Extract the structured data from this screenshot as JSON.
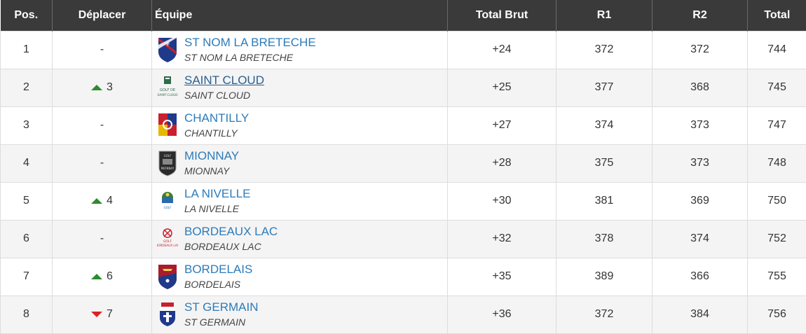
{
  "table": {
    "headers": {
      "pos": "Pos.",
      "move": "Déplacer",
      "team": "Équipe",
      "total_brut": "Total Brut",
      "r1": "R1",
      "r2": "R2",
      "total": "Total"
    },
    "rows": [
      {
        "pos": "1",
        "move_dir": "none",
        "move": "-",
        "team": "ST NOM LA BRETECHE",
        "team_sub": "ST NOM LA BRETECHE",
        "logo": "st-nom-crest-icon",
        "total_brut": "+24",
        "r1": "372",
        "r2": "372",
        "total": "744"
      },
      {
        "pos": "2",
        "move_dir": "up",
        "move": "3",
        "team": "SAINT CLOUD",
        "team_sub": "SAINT CLOUD",
        "logo": "saint-cloud-logo-icon",
        "total_brut": "+25",
        "r1": "377",
        "r2": "368",
        "total": "745"
      },
      {
        "pos": "3",
        "move_dir": "none",
        "move": "-",
        "team": "CHANTILLY",
        "team_sub": "CHANTILLY",
        "logo": "chantilly-crest-icon",
        "total_brut": "+27",
        "r1": "374",
        "r2": "373",
        "total": "747"
      },
      {
        "pos": "4",
        "move_dir": "none",
        "move": "-",
        "team": "MIONNAY",
        "team_sub": "MIONNAY",
        "logo": "mionnay-crest-icon",
        "total_brut": "+28",
        "r1": "375",
        "r2": "373",
        "total": "748"
      },
      {
        "pos": "5",
        "move_dir": "up",
        "move": "4",
        "team": "LA NIVELLE",
        "team_sub": "LA NIVELLE",
        "logo": "la-nivelle-logo-icon",
        "total_brut": "+30",
        "r1": "381",
        "r2": "369",
        "total": "750"
      },
      {
        "pos": "6",
        "move_dir": "none",
        "move": "-",
        "team": "BORDEAUX LAC",
        "team_sub": "BORDEAUX LAC",
        "logo": "bordeaux-lac-logo-icon",
        "total_brut": "+32",
        "r1": "378",
        "r2": "374",
        "total": "752"
      },
      {
        "pos": "7",
        "move_dir": "up",
        "move": "6",
        "team": "BORDELAIS",
        "team_sub": "BORDELAIS",
        "logo": "bordelais-crest-icon",
        "total_brut": "+35",
        "r1": "389",
        "r2": "366",
        "total": "755"
      },
      {
        "pos": "8",
        "move_dir": "down",
        "move": "7",
        "team": "ST GERMAIN",
        "team_sub": "ST GERMAIN",
        "logo": "st-germain-crest-icon",
        "total_brut": "+36",
        "r1": "372",
        "r2": "384",
        "total": "756"
      }
    ]
  },
  "colors": {
    "header_bg": "#3a3a3a",
    "link": "#2b7bbb",
    "arrow_up": "#2e8b2e",
    "arrow_down": "#e02020"
  }
}
